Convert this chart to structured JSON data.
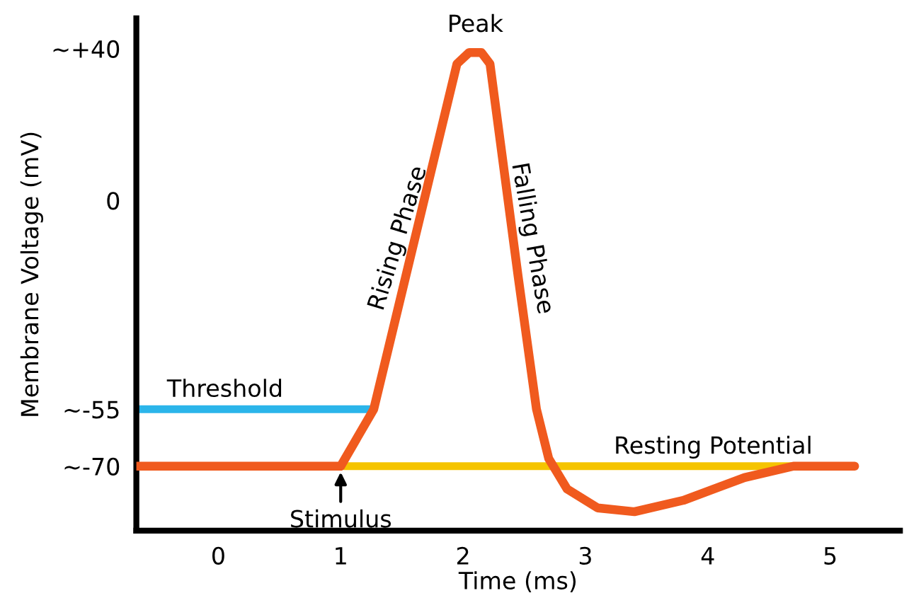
{
  "chart_data": {
    "type": "line",
    "xlabel": "Time (ms)",
    "ylabel": "Membrane Voltage (mV)",
    "xlim": [
      -0.67,
      5.57
    ],
    "ylim": [
      -87,
      48
    ],
    "xticks": [
      0,
      1,
      2,
      3,
      4,
      5
    ],
    "yticks": [
      {
        "value": 40,
        "label": "~+40"
      },
      0,
      {
        "value": -55,
        "label": "~-55"
      },
      {
        "value": -70,
        "label": "~-70"
      }
    ],
    "series": [
      {
        "name": "Threshold",
        "color": "#2bb5ea",
        "x": [
          -0.67,
          1.27
        ],
        "values": [
          -55,
          -55
        ]
      },
      {
        "name": "Resting Potential",
        "color": "#f5c400",
        "x": [
          1.03,
          4.7
        ],
        "values": [
          -70,
          -70
        ]
      },
      {
        "color": "#f05a1e",
        "x": [
          -0.67,
          1.0,
          1.27,
          1.95,
          2.05,
          2.15,
          2.22,
          2.45,
          2.6,
          2.7,
          2.85,
          3.1,
          3.4,
          3.8,
          4.3,
          4.7,
          5.2
        ],
        "values": [
          -70,
          -70,
          -55,
          36,
          39,
          39,
          36,
          -20,
          -55,
          -68,
          -76,
          -81,
          -82,
          -79,
          -73,
          -70,
          -70
        ]
      }
    ],
    "annotations": [
      {
        "text": "Peak",
        "x": 2.1,
        "y": 39
      },
      {
        "text": "Rising Phase",
        "x": 1.6,
        "y": -10
      },
      {
        "text": "Falling Phase",
        "x": 2.4,
        "y": -10
      },
      {
        "text": "Stimulus",
        "x": 1.0,
        "y": -70
      }
    ],
    "grid": false,
    "legend": false
  }
}
